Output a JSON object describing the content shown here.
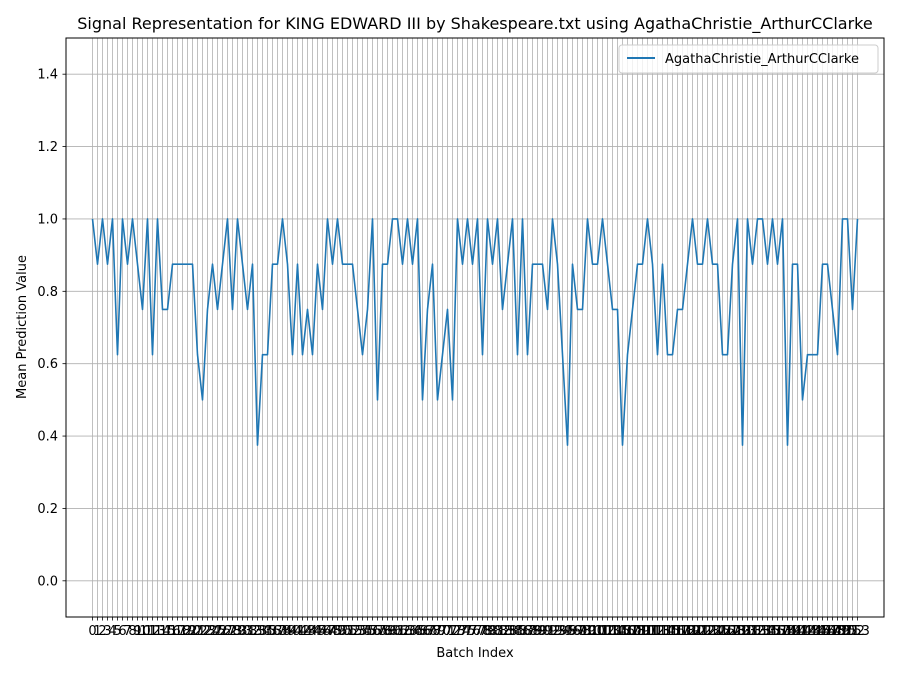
{
  "chart_data": {
    "type": "line",
    "title": "Signal Representation for KING EDWARD III by Shakespeare.txt using AgathaChristie_ArthurCClarke",
    "xlabel": "Batch Index",
    "ylabel": "Mean Prediction Value",
    "xlim": [
      -5.3,
      158.3
    ],
    "ylim": [
      -0.1,
      1.5
    ],
    "yticks": [
      0.0,
      0.2,
      0.4,
      0.6,
      0.8,
      1.0,
      1.2,
      1.4
    ],
    "x_tick_count": 154,
    "x_tick_labels_note_visible_tail": "13",
    "grid": true,
    "legend_position": "top-right",
    "series": [
      {
        "name": "AgathaChristie_ArthurCClarke",
        "color": "#1f77b4",
        "values": [
          1.0,
          0.875,
          1.0,
          0.875,
          1.0,
          0.625,
          1.0,
          0.875,
          1.0,
          0.875,
          0.75,
          1.0,
          0.625,
          1.0,
          0.75,
          0.75,
          0.875,
          0.875,
          0.875,
          0.875,
          0.875,
          0.625,
          0.5,
          0.75,
          0.875,
          0.75,
          0.875,
          1.0,
          0.75,
          1.0,
          0.875,
          0.75,
          0.875,
          0.375,
          0.625,
          0.625,
          0.875,
          0.875,
          1.0,
          0.875,
          0.625,
          0.875,
          0.625,
          0.75,
          0.625,
          0.875,
          0.75,
          1.0,
          0.875,
          1.0,
          0.875,
          0.875,
          0.875,
          0.75,
          0.625,
          0.75,
          1.0,
          0.5,
          0.875,
          0.875,
          1.0,
          1.0,
          0.875,
          1.0,
          0.875,
          1.0,
          0.5,
          0.75,
          0.875,
          0.5,
          0.625,
          0.75,
          0.5,
          1.0,
          0.875,
          1.0,
          0.875,
          1.0,
          0.625,
          1.0,
          0.875,
          1.0,
          0.75,
          0.875,
          1.0,
          0.625,
          1.0,
          0.625,
          0.875,
          0.875,
          0.875,
          0.75,
          1.0,
          0.875,
          0.625,
          0.375,
          0.875,
          0.75,
          0.75,
          1.0,
          0.875,
          0.875,
          1.0,
          0.875,
          0.75,
          0.75,
          0.375,
          0.625,
          0.75,
          0.875,
          0.875,
          1.0,
          0.875,
          0.625,
          0.875,
          0.625,
          0.625,
          0.75,
          0.75,
          0.875,
          1.0,
          0.875,
          0.875,
          1.0,
          0.875,
          0.875,
          0.625,
          0.625,
          0.875,
          1.0,
          0.375,
          1.0,
          0.875,
          1.0,
          1.0,
          0.875,
          1.0,
          0.875,
          1.0,
          0.375,
          0.875,
          0.875,
          0.5,
          0.625,
          0.625,
          0.625,
          0.875,
          0.875,
          0.75,
          0.625,
          1.0,
          1.0,
          0.75,
          1.0
        ]
      }
    ]
  }
}
